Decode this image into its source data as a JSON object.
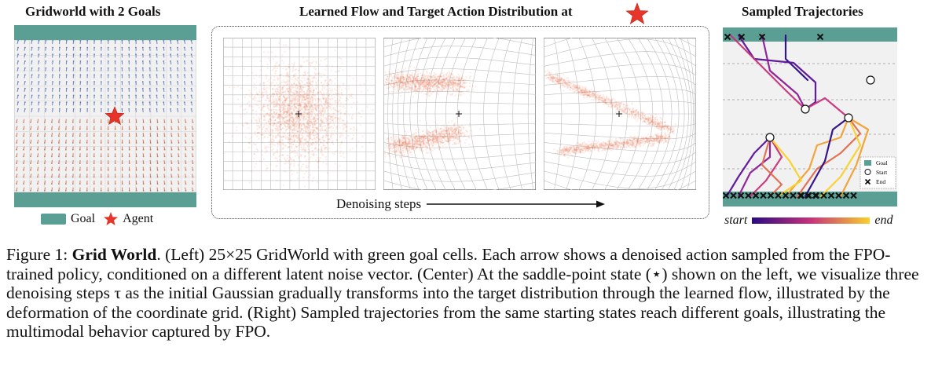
{
  "left": {
    "title": "Gridworld with 2 Goals",
    "legend_goal": "Goal",
    "legend_agent": "Agent",
    "colors": {
      "goal": "#5b9e93",
      "agent": "#e8352a",
      "arrow_top": "#5573b8",
      "arrow_bottom": "#c76a4a"
    }
  },
  "center": {
    "title": "Learned Flow and Target Action Distribution at",
    "axis_label": "Denoising steps",
    "colors": {
      "particles": "#e8643a"
    }
  },
  "right": {
    "title": "Sampled Trajectories",
    "legend": {
      "goal": "Goal",
      "start": "Start",
      "end": "End"
    },
    "colorbar_start": "start",
    "colorbar_end": "end",
    "colors": {
      "start": "#2a0a84",
      "mid": "#c8327a",
      "end": "#f9d02a"
    }
  },
  "caption": {
    "figure_label": "Figure 1:",
    "bold_title": "Grid World",
    "text": ". (Left) 25×25 GridWorld with green goal cells. Each arrow shows a denoised action sampled from the FPO-trained policy, conditioned on a different latent noise vector. (Center) At the saddle-point state (⋆) shown on the left, we visualize three denoising steps τ as the initial Gaussian gradually transforms into the target distribution through the learned flow, illustrated by the deformation of the coordinate grid. (Right) Sampled trajectories from the same starting states reach different goals, illustrating the multimodal behavior captured by FPO."
  }
}
